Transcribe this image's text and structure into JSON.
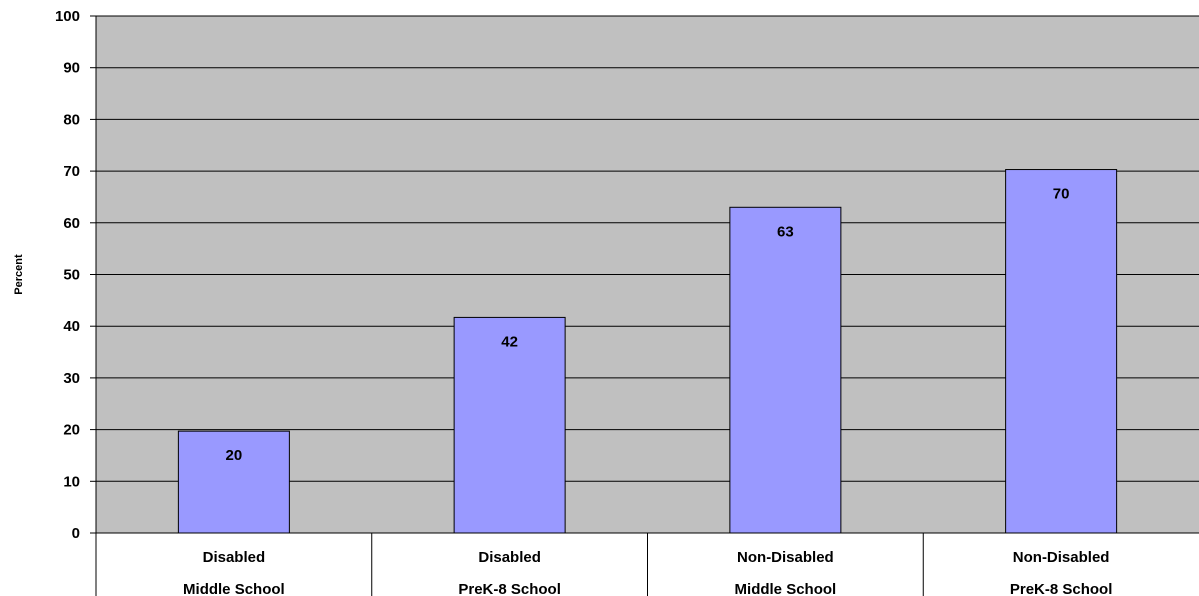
{
  "chart_data": {
    "type": "bar",
    "ylabel": "Percent",
    "ylim": [
      0,
      100
    ],
    "yticks": [
      0,
      10,
      20,
      30,
      40,
      50,
      60,
      70,
      80,
      90,
      100
    ],
    "grid": true,
    "categories": [
      [
        "Disabled",
        "Middle School"
      ],
      [
        "Disabled",
        "PreK-8 School"
      ],
      [
        "Non-Disabled",
        "Middle School"
      ],
      [
        "Non-Disabled",
        "PreK-8 School"
      ]
    ],
    "values": [
      19.7,
      41.7,
      63.0,
      70.3
    ],
    "data_labels": [
      "20",
      "42",
      "63",
      "70"
    ],
    "colors": {
      "plot_background": "#c0c0c0",
      "bar_fill": "#9999ff",
      "bar_stroke": "#000000",
      "gridline": "#000000"
    }
  }
}
